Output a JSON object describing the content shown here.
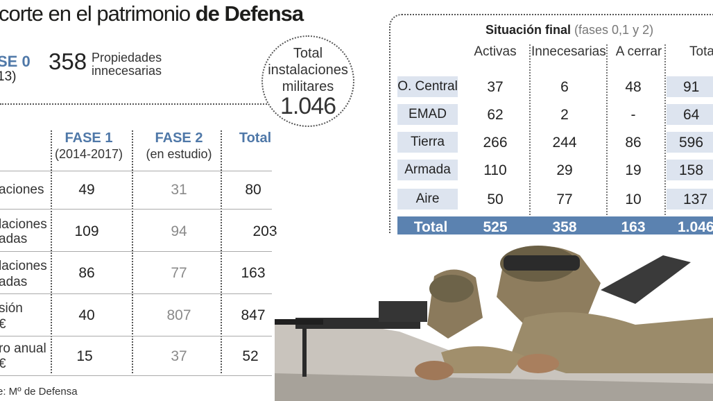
{
  "title": {
    "pre": "corte en el patrimonio ",
    "bold": "de Defensa"
  },
  "fase0": {
    "label": "SE 0",
    "years": "13)",
    "count": "358",
    "desc_line1": "Propiedades",
    "desc_line2": "innecesarias"
  },
  "total_inst": {
    "line1": "Total",
    "line2": "instalaciones",
    "line3": "militares",
    "value": "1.046"
  },
  "left_table": {
    "headers": [
      {
        "title": "FASE 1",
        "sub": "(2014-2017)"
      },
      {
        "title": "FASE 2",
        "sub": "(en estudio)"
      },
      {
        "title": "Total",
        "sub": ""
      }
    ],
    "rows": [
      {
        "label1": "aciones",
        "label2": "",
        "f1": "49",
        "f2": "31",
        "total": "80"
      },
      {
        "label1": "laciones",
        "label2": "adas",
        "f1": "109",
        "f2": "94",
        "total": "203"
      },
      {
        "label1": "laciones",
        "label2": "adas",
        "f1": "86",
        "f2": "77",
        "total": "163"
      },
      {
        "label1": "sión",
        "label2": "€",
        "f1": "40",
        "f2": "807",
        "total": "847"
      },
      {
        "label1": "ro anual",
        "label2": "€",
        "f1": "15",
        "f2": "37",
        "total": "52"
      }
    ]
  },
  "source": "e: Mº de Defensa",
  "right_table": {
    "title": "Situación final",
    "title_note": "(fases 0,1 y 2)",
    "columns": [
      "Activas",
      "Innecesarias",
      "A cerrar",
      "Tota"
    ],
    "rows": [
      {
        "label": "O. Central",
        "activas": "37",
        "innecesarias": "6",
        "cerrar": "48",
        "total": "91"
      },
      {
        "label": "EMAD",
        "activas": "62",
        "innecesarias": "2",
        "cerrar": "-",
        "total": "64"
      },
      {
        "label": "Tierra",
        "activas": "266",
        "innecesarias": "244",
        "cerrar": "86",
        "total": "596"
      },
      {
        "label": "Armada",
        "activas": "110",
        "innecesarias": "29",
        "cerrar": "19",
        "total": "158"
      },
      {
        "label": "Aire",
        "activas": "50",
        "innecesarias": "77",
        "cerrar": "10",
        "total": "137"
      }
    ],
    "total_row": {
      "label": "Total",
      "activas": "525",
      "innecesarias": "358",
      "cerrar": "163",
      "total": "1.046"
    }
  },
  "colors": {
    "accent": "#4f78a8",
    "row_bg": "#dde4ef",
    "total_bg": "#5b82b0"
  },
  "chart_data": [
    {
      "type": "table",
      "columns": [
        "FASE 1 (2014-2017)",
        "FASE 2 (en estudio)",
        "Total"
      ],
      "rows": [
        {
          "label": "aciones",
          "values": [
            49,
            31,
            80
          ]
        },
        {
          "label": "laciones adas",
          "values": [
            109,
            94,
            203
          ]
        },
        {
          "label": "laciones adas",
          "values": [
            86,
            77,
            163
          ]
        },
        {
          "label": "sión €",
          "values": [
            40,
            807,
            847
          ]
        },
        {
          "label": "ro anual €",
          "values": [
            15,
            37,
            52
          ]
        }
      ]
    },
    {
      "type": "table",
      "title": "Situación final (fases 0,1 y 2)",
      "columns": [
        "Activas",
        "Innecesarias",
        "A cerrar",
        "Tota"
      ],
      "rows": [
        {
          "label": "O. Central",
          "values": [
            37,
            6,
            48,
            91
          ]
        },
        {
          "label": "EMAD",
          "values": [
            62,
            2,
            null,
            64
          ]
        },
        {
          "label": "Tierra",
          "values": [
            266,
            244,
            86,
            596
          ]
        },
        {
          "label": "Armada",
          "values": [
            110,
            29,
            19,
            158
          ]
        },
        {
          "label": "Aire",
          "values": [
            50,
            77,
            10,
            137
          ]
        },
        {
          "label": "Total",
          "values": [
            525,
            358,
            163,
            1046
          ]
        }
      ]
    }
  ]
}
